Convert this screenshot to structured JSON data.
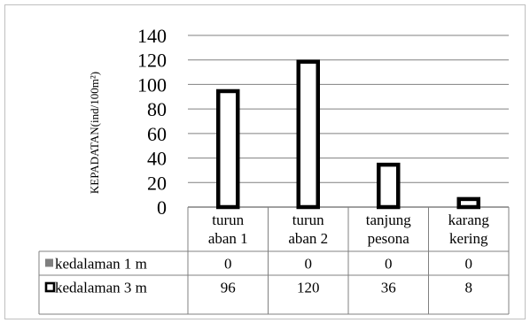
{
  "chart_data": {
    "type": "bar",
    "ylabel": "KEPADATAN(ind/100m²)",
    "ylim": [
      0,
      140
    ],
    "yticks": [
      "140",
      "120",
      "100",
      "80",
      "60",
      "40",
      "20",
      "0"
    ],
    "categories": [
      [
        "turun",
        "aban 1"
      ],
      [
        "turun",
        "aban 2"
      ],
      [
        "tanjung",
        "pesona"
      ],
      [
        "karang",
        "kering"
      ]
    ],
    "grid": true,
    "legend": "data-table",
    "series": [
      {
        "name": "kedalaman 1 m",
        "values": [
          0,
          0,
          0,
          0
        ],
        "labels": [
          "0",
          "0",
          "0",
          "0"
        ],
        "color": "#7f7f7f"
      },
      {
        "name": "kedalaman 3 m",
        "values": [
          96,
          120,
          36,
          8
        ],
        "labels": [
          "96",
          "120",
          "36",
          "8"
        ],
        "color": "#ffffff",
        "stroke": "#000000"
      }
    ]
  }
}
